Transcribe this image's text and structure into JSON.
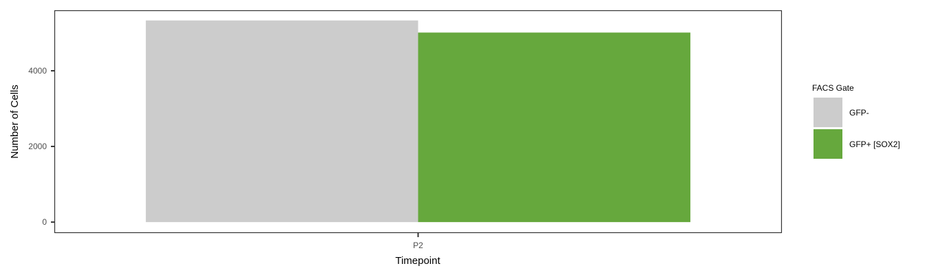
{
  "chart_data": {
    "type": "bar",
    "categories": [
      "P2"
    ],
    "series": [
      {
        "name": "GFP-",
        "values": [
          5330
        ],
        "color": "#CCCCCC"
      },
      {
        "name": "GFP+ [SOX2]",
        "values": [
          5010
        ],
        "color": "#66A83D"
      }
    ],
    "xlabel": "Timepoint",
    "ylabel": "Number of Cells",
    "ylim": [
      -270,
      5580
    ],
    "yticks": [
      0,
      2000,
      4000
    ],
    "grid": false,
    "legend": {
      "title": "FACS Gate",
      "position": "right"
    }
  }
}
